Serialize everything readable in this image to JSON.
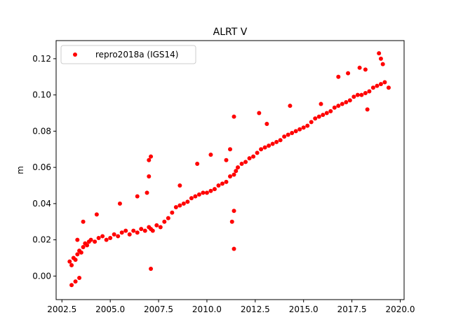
{
  "chart_data": {
    "type": "scatter",
    "title": "ALRT V",
    "xlabel": "",
    "ylabel": "m",
    "xlim": [
      2002.2,
      2020.2
    ],
    "ylim": [
      -0.013,
      0.13
    ],
    "xticks": [
      2002.5,
      2005.0,
      2007.5,
      2010.0,
      2012.5,
      2015.0,
      2017.5,
      2020.0
    ],
    "xtick_labels": [
      "2002.5",
      "2005.0",
      "2007.5",
      "2010.0",
      "2012.5",
      "2015.0",
      "2017.5",
      "2020.0"
    ],
    "yticks": [
      0.0,
      0.02,
      0.04,
      0.06,
      0.08,
      0.1,
      0.12
    ],
    "ytick_labels": [
      "0.00",
      "0.02",
      "0.04",
      "0.06",
      "0.08",
      "0.10",
      "0.12"
    ],
    "grid": false,
    "legend_position": "top-left",
    "series": [
      {
        "name": "repro2018a (IGS14)",
        "color": "#ff0000",
        "marker": "circle",
        "x": [
          2002.9,
          2003.0,
          2003.1,
          2003.2,
          2003.3,
          2003.4,
          2003.5,
          2003.6,
          2003.7,
          2003.8,
          2003.9,
          2004.0,
          2004.2,
          2004.4,
          2004.6,
          2004.8,
          2005.0,
          2005.2,
          2005.4,
          2005.6,
          2005.8,
          2006.0,
          2006.2,
          2006.4,
          2006.6,
          2006.8,
          2007.0,
          2007.1,
          2007.2,
          2007.4,
          2007.6,
          2007.8,
          2008.0,
          2008.2,
          2008.4,
          2008.6,
          2008.8,
          2009.0,
          2009.2,
          2009.4,
          2009.6,
          2009.8,
          2010.0,
          2010.2,
          2010.4,
          2010.6,
          2010.8,
          2011.0,
          2011.2,
          2011.4,
          2011.5,
          2011.6,
          2011.8,
          2012.0,
          2012.2,
          2012.4,
          2012.6,
          2012.8,
          2013.0,
          2013.2,
          2013.4,
          2013.6,
          2013.8,
          2014.0,
          2014.2,
          2014.4,
          2014.6,
          2014.8,
          2015.0,
          2015.2,
          2015.4,
          2015.6,
          2015.8,
          2016.0,
          2016.2,
          2016.4,
          2016.6,
          2016.8,
          2017.0,
          2017.2,
          2017.4,
          2017.6,
          2017.8,
          2018.0,
          2018.2,
          2018.4,
          2018.6,
          2018.8,
          2019.0,
          2019.2,
          2019.4,
          2003.0,
          2003.2,
          2003.4,
          2003.3,
          2003.6,
          2004.3,
          2005.5,
          2006.4,
          2007.0,
          2007.1,
          2007.0,
          2006.9,
          2007.1,
          2008.6,
          2009.5,
          2010.2,
          2011.0,
          2011.2,
          2011.4,
          2011.4,
          2011.3,
          2011.4,
          2012.7,
          2013.1,
          2014.3,
          2015.9,
          2016.8,
          2017.3,
          2017.9,
          2018.2,
          2018.9,
          2019.0,
          2019.1,
          2018.3
        ],
        "y": [
          0.008,
          0.006,
          0.01,
          0.009,
          0.012,
          0.014,
          0.013,
          0.016,
          0.018,
          0.017,
          0.019,
          0.02,
          0.019,
          0.021,
          0.022,
          0.02,
          0.021,
          0.023,
          0.022,
          0.024,
          0.025,
          0.023,
          0.025,
          0.024,
          0.026,
          0.025,
          0.027,
          0.026,
          0.025,
          0.028,
          0.027,
          0.03,
          0.032,
          0.035,
          0.038,
          0.039,
          0.04,
          0.041,
          0.043,
          0.044,
          0.045,
          0.046,
          0.046,
          0.047,
          0.048,
          0.05,
          0.051,
          0.052,
          0.055,
          0.056,
          0.058,
          0.06,
          0.062,
          0.063,
          0.065,
          0.066,
          0.068,
          0.07,
          0.071,
          0.072,
          0.073,
          0.074,
          0.075,
          0.077,
          0.078,
          0.079,
          0.08,
          0.081,
          0.082,
          0.083,
          0.085,
          0.087,
          0.088,
          0.089,
          0.09,
          0.091,
          0.093,
          0.094,
          0.095,
          0.096,
          0.097,
          0.099,
          0.1,
          0.1,
          0.101,
          0.102,
          0.104,
          0.105,
          0.106,
          0.107,
          0.104,
          -0.005,
          -0.003,
          -0.001,
          0.02,
          0.03,
          0.034,
          0.04,
          0.044,
          0.064,
          0.066,
          0.055,
          0.046,
          0.004,
          0.05,
          0.062,
          0.067,
          0.064,
          0.07,
          0.088,
          0.015,
          0.03,
          0.036,
          0.09,
          0.084,
          0.094,
          0.095,
          0.11,
          0.112,
          0.115,
          0.114,
          0.123,
          0.12,
          0.117,
          0.092
        ]
      }
    ]
  }
}
